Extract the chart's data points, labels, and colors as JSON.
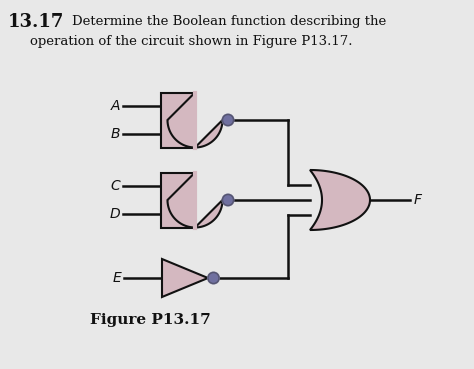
{
  "bg_color": "#e8e8e8",
  "gate_fill": "#d4b8c0",
  "gate_edge": "#111111",
  "line_color": "#111111",
  "text_color": "#111111",
  "bubble_color": "#8080a0",
  "title_bold": "13.17",
  "title_rest1": "Determine the Boolean function describing the",
  "title_rest2": "operation of the circuit shown in Figure P13.17.",
  "figure_label": "Figure P13.17",
  "inputs": [
    "A",
    "B",
    "C",
    "D",
    "E"
  ],
  "output": "F"
}
